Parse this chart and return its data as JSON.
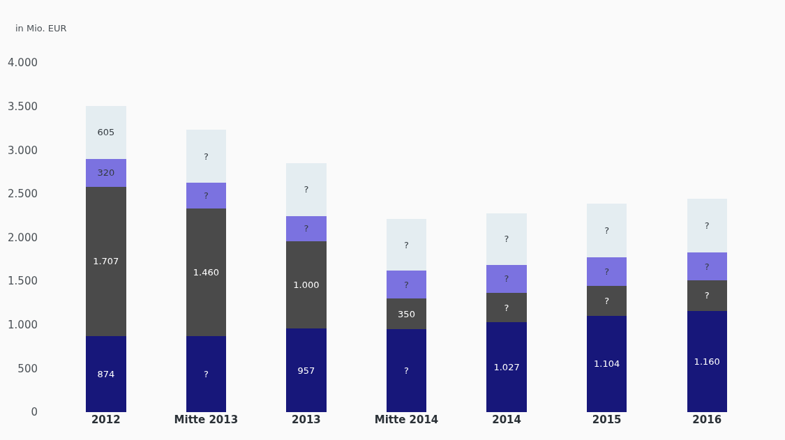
{
  "chart_data": {
    "type": "bar",
    "stacked": true,
    "ylabel": "in Mio. EUR",
    "categories": [
      "2012",
      "Mitte 2013",
      "2013",
      "Mitte 2014",
      "2014",
      "2015",
      "2016"
    ],
    "series": [
      {
        "color": "#17177a",
        "values": [
          874,
          870,
          957,
          950,
          1027,
          1104,
          1160
        ],
        "value_labels": [
          "874",
          "?",
          "957",
          "?",
          "1.027",
          "1.104",
          "1.160"
        ]
      },
      {
        "color": "#4a4a4a",
        "values": [
          1707,
          1460,
          1000,
          350,
          340,
          340,
          350
        ],
        "value_labels": [
          "1.707",
          "1.460",
          "1.000",
          "350",
          "?",
          "?",
          "?"
        ]
      },
      {
        "color": "#7b72e0",
        "values": [
          320,
          300,
          290,
          320,
          320,
          330,
          315
        ],
        "value_labels": [
          "320",
          "?",
          "?",
          "?",
          "?",
          "?",
          "?"
        ]
      },
      {
        "color": "#e4edf1",
        "values": [
          605,
          600,
          600,
          590,
          590,
          610,
          615
        ],
        "value_labels": [
          "605",
          "?",
          "?",
          "?",
          "?",
          "?",
          "?"
        ]
      }
    ],
    "ylim": [
      0,
      4000
    ],
    "yticks": [
      0,
      500,
      {
        "value": 1000,
        "label": "1.000"
      },
      {
        "value": 1500,
        "label": "1.500"
      },
      {
        "value": 2000,
        "label": "2.000"
      },
      {
        "value": 2500,
        "label": "2.500"
      },
      {
        "value": 3000,
        "label": "3.000"
      },
      {
        "value": 3500,
        "label": "3.500"
      },
      {
        "value": 4000,
        "label": "4.000"
      }
    ]
  }
}
